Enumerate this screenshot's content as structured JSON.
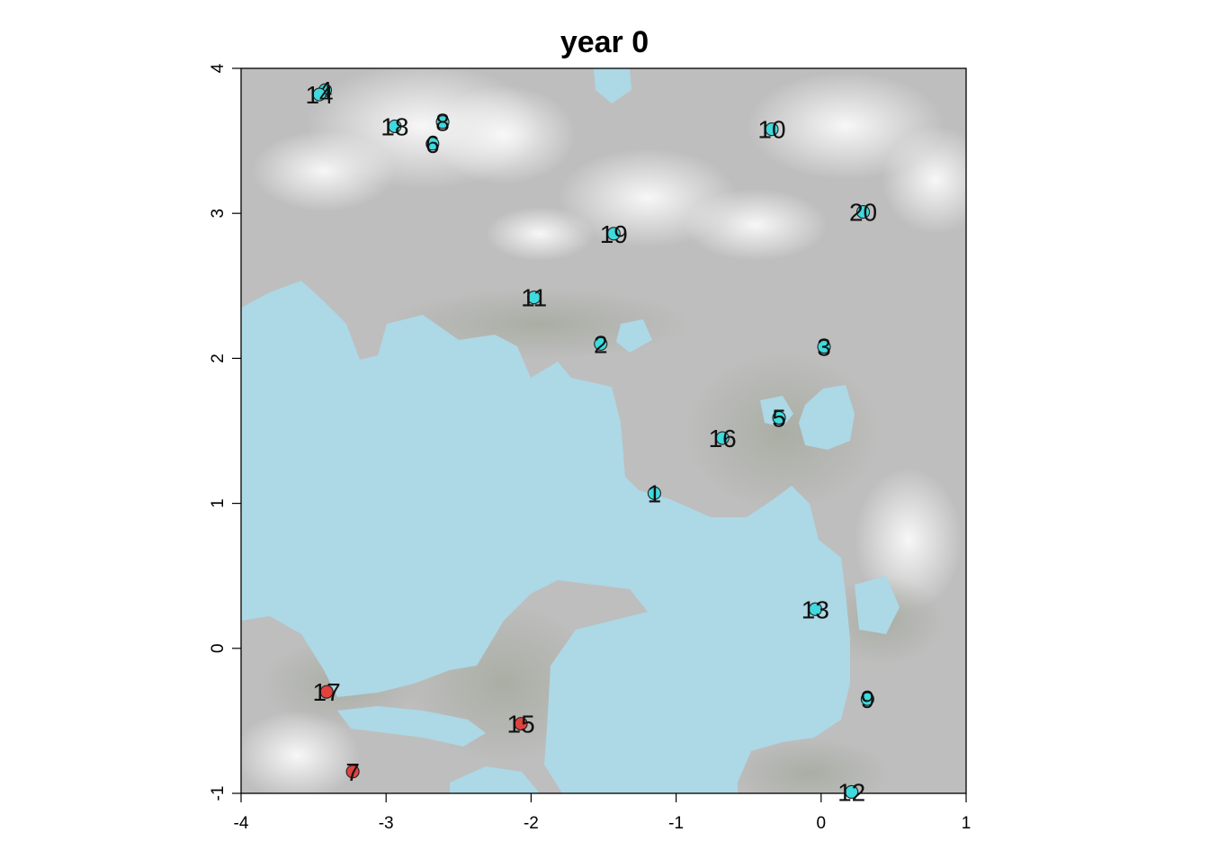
{
  "chart_data": {
    "type": "scatter",
    "title": "year 0",
    "xlabel": "",
    "ylabel": "",
    "xlim": [
      -4,
      1
    ],
    "ylim": [
      -1,
      4
    ],
    "x_ticks": [
      -4,
      -3,
      -2,
      -1,
      0,
      1
    ],
    "y_ticks": [
      -1,
      0,
      1,
      2,
      3,
      4
    ],
    "grid": false,
    "background": "terrain raster: grey elevation with light-blue water",
    "colors": {
      "water": "#add8e6",
      "land": "#bebebe",
      "highland": "#efefef",
      "shore": "#a9b59c",
      "cyan_point": "#3fd9de",
      "red_point": "#e0423e"
    },
    "points": [
      {
        "id": "1",
        "x": -1.15,
        "y": 1.07,
        "color": "cyan"
      },
      {
        "id": "2",
        "x": -1.52,
        "y": 2.1,
        "color": "cyan"
      },
      {
        "id": "3",
        "x": 0.02,
        "y": 2.08,
        "color": "cyan"
      },
      {
        "id": "4",
        "x": -3.42,
        "y": 3.85,
        "color": "cyan"
      },
      {
        "id": "5",
        "x": -0.29,
        "y": 1.59,
        "color": "cyan"
      },
      {
        "id": "6",
        "x": -2.68,
        "y": 3.48,
        "color": "cyan"
      },
      {
        "id": "7",
        "x": -3.23,
        "y": -0.85,
        "color": "red"
      },
      {
        "id": "8",
        "x": -2.61,
        "y": 3.63,
        "color": "cyan"
      },
      {
        "id": "9",
        "x": 0.32,
        "y": -0.35,
        "color": "cyan"
      },
      {
        "id": "10",
        "x": -0.34,
        "y": 3.58,
        "color": "cyan"
      },
      {
        "id": "11",
        "x": -1.98,
        "y": 2.42,
        "color": "cyan"
      },
      {
        "id": "12",
        "x": 0.21,
        "y": -0.99,
        "color": "cyan"
      },
      {
        "id": "13",
        "x": -0.04,
        "y": 0.27,
        "color": "cyan"
      },
      {
        "id": "14",
        "x": -3.46,
        "y": 3.82,
        "color": "cyan"
      },
      {
        "id": "15",
        "x": -2.07,
        "y": -0.52,
        "color": "red"
      },
      {
        "id": "16",
        "x": -0.68,
        "y": 1.45,
        "color": "cyan"
      },
      {
        "id": "17",
        "x": -3.41,
        "y": -0.3,
        "color": "red"
      },
      {
        "id": "18",
        "x": -2.94,
        "y": 3.6,
        "color": "cyan"
      },
      {
        "id": "19",
        "x": -1.43,
        "y": 2.86,
        "color": "cyan"
      },
      {
        "id": "20",
        "x": 0.29,
        "y": 3.01,
        "color": "cyan"
      }
    ]
  }
}
